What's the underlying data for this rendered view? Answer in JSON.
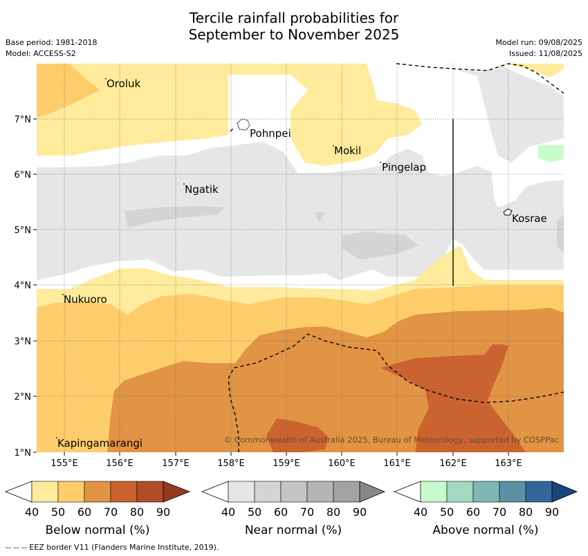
{
  "title_line1": "Tercile rainfall probabilities for",
  "title_line2": "September to November 2025",
  "meta": {
    "base_period": "Base period: 1981-2018",
    "model": "Model: ACCESS-S2",
    "model_run": "Model run: 09/08/2025",
    "issued": "Issued: 11/08/2025"
  },
  "map": {
    "x_ticks": [
      "155°E",
      "156°E",
      "157°E",
      "158°E",
      "159°E",
      "160°E",
      "161°E",
      "162°E",
      "163°E"
    ],
    "y_ticks": [
      "7°N",
      "6°N",
      "5°N",
      "4°N",
      "3°N",
      "2°N",
      "1°N"
    ],
    "places": [
      {
        "name": "Oroluk"
      },
      {
        "name": "Pohnpei"
      },
      {
        "name": "Mokil"
      },
      {
        "name": "Pingelap"
      },
      {
        "name": "Ngatik"
      },
      {
        "name": "Kosrae"
      },
      {
        "name": "Nukuoro"
      },
      {
        "name": "Kapingamarangi"
      }
    ],
    "copyright": "© Commonwealth of Australia 2025, Bureau of Meteorology, supported by COSPPac"
  },
  "colorbars": [
    {
      "label": "Below normal (%)",
      "ticks": [
        "40",
        "50",
        "60",
        "70",
        "80",
        "90"
      ],
      "colors": [
        "#ffeb9b",
        "#fecd6b",
        "#e09444",
        "#cb6330",
        "#b24d2a",
        "#93391f"
      ]
    },
    {
      "label": "Near normal (%)",
      "ticks": [
        "40",
        "50",
        "60",
        "70",
        "80",
        "90"
      ],
      "colors": [
        "#e6e6e6",
        "#d4d4d4",
        "#c5c5c5",
        "#b5b5b5",
        "#a3a3a3",
        "#888888"
      ]
    },
    {
      "label": "Above normal (%)",
      "ticks": [
        "40",
        "50",
        "60",
        "70",
        "80",
        "90"
      ],
      "colors": [
        "#c8fbcc",
        "#a4d8c0",
        "#80b6b3",
        "#5a91a3",
        "#346699",
        "#18467c"
      ]
    }
  ],
  "footnote": "--  --  -- EEZ border V11 (Flanders Marine Institute, 2019)."
}
